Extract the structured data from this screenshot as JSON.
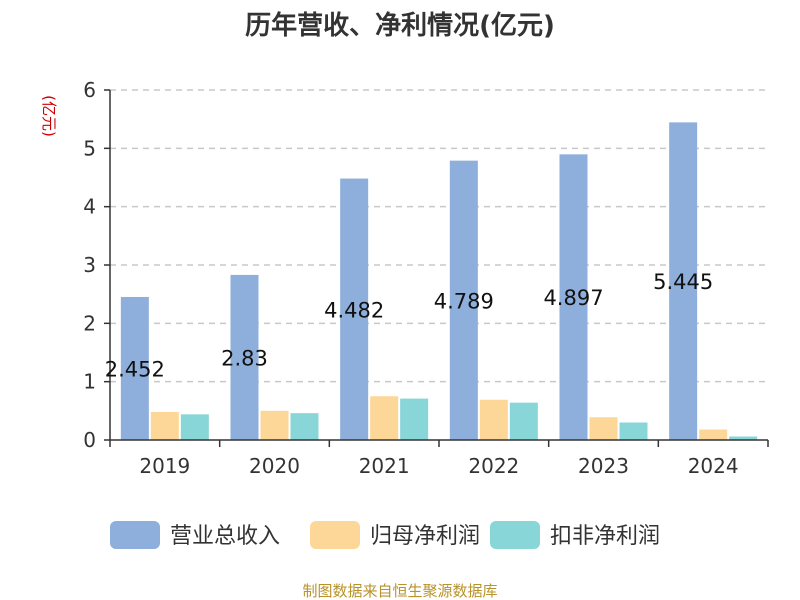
{
  "chart_data": {
    "type": "bar",
    "title": "历年营收、净利情况(亿元)",
    "ylabel": "(亿元)",
    "xlabel": "",
    "categories": [
      "2019",
      "2020",
      "2021",
      "2022",
      "2023",
      "2024"
    ],
    "ylim": [
      0,
      6
    ],
    "yticks": [
      0,
      1,
      2,
      3,
      4,
      5,
      6
    ],
    "grid": true,
    "legend_position": "bottom",
    "series": [
      {
        "name": "营业总收入",
        "color": "#8eaedb",
        "values": [
          2.452,
          2.83,
          4.482,
          4.789,
          4.897,
          5.445
        ],
        "labels": [
          "2.452",
          "2.83",
          "4.482",
          "4.789",
          "4.897",
          "5.445"
        ]
      },
      {
        "name": "归母净利润",
        "color": "#fdd797",
        "values": [
          0.48,
          0.5,
          0.75,
          0.69,
          0.39,
          0.18
        ]
      },
      {
        "name": "扣非净利润",
        "color": "#88d6d8",
        "values": [
          0.44,
          0.46,
          0.71,
          0.64,
          0.3,
          0.06
        ]
      }
    ]
  },
  "source_note": "制图数据来自恒生聚源数据库"
}
